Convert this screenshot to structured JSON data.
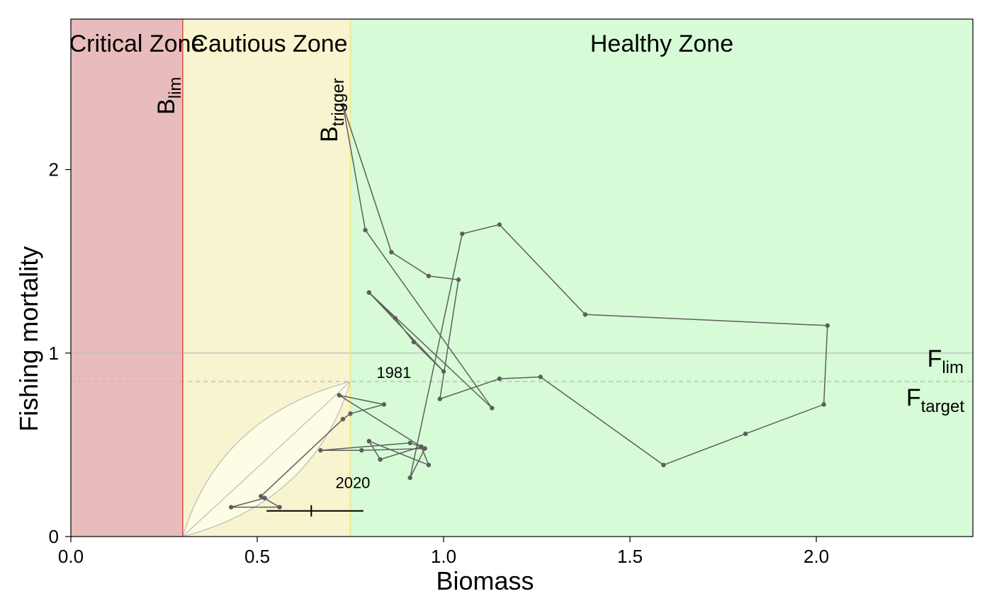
{
  "chart_data": {
    "type": "line",
    "title": "",
    "xlabel": "Biomass",
    "ylabel": "Fishing mortality",
    "xlim": [
      0,
      2.42
    ],
    "ylim": [
      0,
      2.82
    ],
    "x_ticks": [
      {
        "value": 0,
        "label": "0.0"
      },
      {
        "value": 0.5,
        "label": "0.5"
      },
      {
        "value": 1.0,
        "label": "1.0"
      },
      {
        "value": 1.5,
        "label": "1.5"
      },
      {
        "value": 2.0,
        "label": "2.0"
      }
    ],
    "y_ticks": [
      {
        "value": 0,
        "label": "0"
      },
      {
        "value": 1,
        "label": "1"
      },
      {
        "value": 2,
        "label": "2"
      }
    ],
    "grid": false,
    "zones": [
      {
        "label": "Critical Zone",
        "x_from": 0,
        "x_to": 0.3,
        "color": "#e8bcbc"
      },
      {
        "label": "Cautious Zone",
        "x_from": 0.3,
        "x_to": 0.75,
        "color": "#f7f4cf"
      },
      {
        "label": "Healthy Zone",
        "x_from": 0.75,
        "x_to": 2.42,
        "color": "#d6fbd6"
      }
    ],
    "reference_points": {
      "Blim": {
        "value": 0.3,
        "label_main": "B",
        "label_sub": "lim",
        "color": "#d9534f"
      },
      "Btrigger": {
        "value": 0.75,
        "label_main": "B",
        "label_sub": "trigger",
        "color": "#f0e68c"
      },
      "Flim": {
        "value": 1.0,
        "label_main": "F",
        "label_sub": "lim",
        "color": "#bbbbbb"
      },
      "Ftarget": {
        "value": 0.845,
        "label_main": "F",
        "label_sub": "target",
        "color": "#bbbbbb"
      }
    },
    "series": [
      {
        "name": "",
        "color": "#5e5e5e",
        "points": [
          {
            "x": 0.8,
            "y": 1.33
          },
          {
            "x": 0.87,
            "y": 1.19
          },
          {
            "x": 0.92,
            "y": 1.06
          },
          {
            "x": 1.0,
            "y": 0.9
          },
          {
            "x": 0.8,
            "y": 1.33
          },
          {
            "x": 1.13,
            "y": 0.7
          },
          {
            "x": 0.79,
            "y": 1.67
          },
          {
            "x": 0.73,
            "y": 2.35
          },
          {
            "x": 0.86,
            "y": 1.55
          },
          {
            "x": 0.96,
            "y": 1.42
          },
          {
            "x": 1.04,
            "y": 1.4
          },
          {
            "x": 0.99,
            "y": 0.75
          },
          {
            "x": 1.15,
            "y": 0.86
          },
          {
            "x": 1.26,
            "y": 0.87
          },
          {
            "x": 1.59,
            "y": 0.39
          },
          {
            "x": 1.81,
            "y": 0.56
          },
          {
            "x": 2.02,
            "y": 0.72
          },
          {
            "x": 2.03,
            "y": 1.15
          },
          {
            "x": 1.38,
            "y": 1.21
          },
          {
            "x": 1.15,
            "y": 1.7
          },
          {
            "x": 1.05,
            "y": 1.65
          },
          {
            "x": 0.91,
            "y": 0.32
          },
          {
            "x": 0.95,
            "y": 0.48
          },
          {
            "x": 0.78,
            "y": 0.47
          },
          {
            "x": 0.67,
            "y": 0.47
          },
          {
            "x": 0.91,
            "y": 0.51
          },
          {
            "x": 0.94,
            "y": 0.49
          },
          {
            "x": 0.83,
            "y": 0.42
          },
          {
            "x": 0.8,
            "y": 0.52
          },
          {
            "x": 0.96,
            "y": 0.39
          },
          {
            "x": 0.94,
            "y": 0.49
          },
          {
            "x": 0.72,
            "y": 0.77
          },
          {
            "x": 0.84,
            "y": 0.72
          },
          {
            "x": 0.75,
            "y": 0.67
          },
          {
            "x": 0.73,
            "y": 0.64
          },
          {
            "x": 0.51,
            "y": 0.22
          },
          {
            "x": 0.56,
            "y": 0.16
          },
          {
            "x": 0.43,
            "y": 0.16
          },
          {
            "x": 0.52,
            "y": 0.21
          }
        ]
      }
    ],
    "annotations": [
      {
        "text": "1981",
        "x": 0.82,
        "y": 0.81
      },
      {
        "text": "2020",
        "x": 0.71,
        "y": 0.21
      }
    ],
    "terminal_estimate": {
      "x": 0.645,
      "y": 0.14,
      "x_low": 0.525,
      "x_high": 0.785
    },
    "hcr_envelope": {
      "b_lim": 0.3,
      "b_trigger": 0.75,
      "f_target": 0.845
    }
  }
}
